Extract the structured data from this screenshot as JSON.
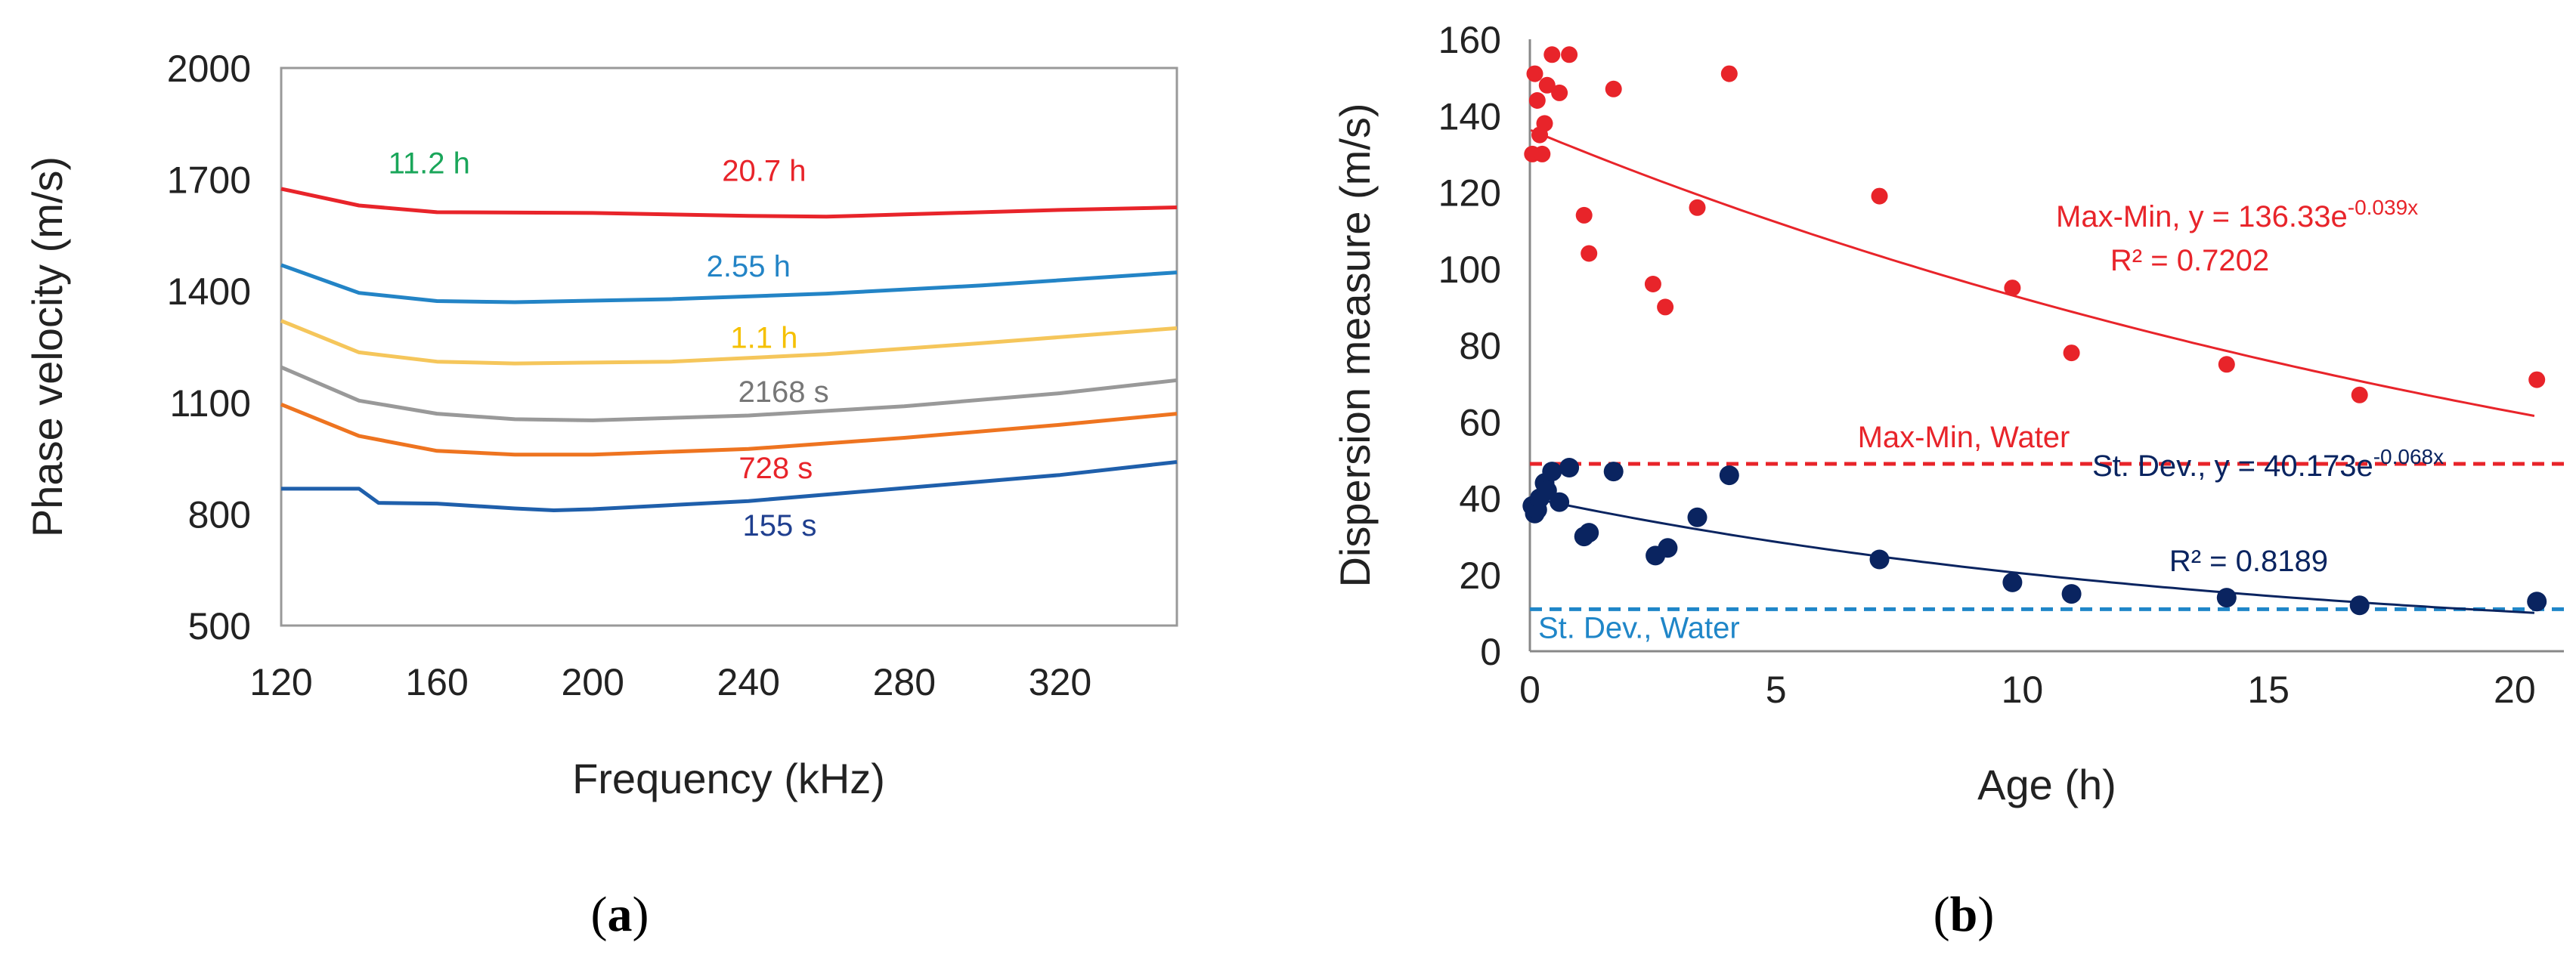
{
  "panel_labels": {
    "a": "(a)",
    "a_letter": "a",
    "b": "(b)",
    "b_letter": "b"
  },
  "chart_data": [
    {
      "type": "line",
      "xlabel": "Frequency (kHz)",
      "ylabel": "Phase velocity (m/s)",
      "xlim": [
        120,
        350
      ],
      "ylim": [
        500,
        2000
      ],
      "xticks": [
        120,
        160,
        200,
        240,
        280,
        320
      ],
      "yticks": [
        500,
        800,
        1100,
        1400,
        1700,
        2000
      ],
      "grid": false,
      "series": [
        {
          "name": "20.7 h",
          "color": "#e8242a",
          "x": [
            120,
            140,
            160,
            200,
            240,
            260,
            280,
            320,
            350
          ],
          "y": [
            1675,
            1630,
            1612,
            1610,
            1602,
            1600,
            1606,
            1618,
            1625
          ]
        },
        {
          "name": "2.55 h",
          "color": "#2384c6",
          "x": [
            120,
            140,
            160,
            180,
            220,
            260,
            300,
            350
          ],
          "y": [
            1470,
            1395,
            1373,
            1370,
            1378,
            1393,
            1415,
            1450
          ]
        },
        {
          "name": "1.1 h",
          "color": "#f5c65b",
          "x": [
            120,
            140,
            160,
            180,
            220,
            260,
            300,
            350
          ],
          "y": [
            1320,
            1235,
            1210,
            1205,
            1210,
            1230,
            1260,
            1300
          ]
        },
        {
          "name": "2168 s",
          "color": "#999999",
          "x": [
            120,
            140,
            160,
            180,
            200,
            240,
            280,
            320,
            350
          ],
          "y": [
            1195,
            1105,
            1070,
            1055,
            1052,
            1065,
            1090,
            1125,
            1160
          ]
        },
        {
          "name": "728 s",
          "color": "#ee7420",
          "x": [
            120,
            140,
            160,
            180,
            200,
            240,
            280,
            320,
            350
          ],
          "y": [
            1095,
            1010,
            970,
            960,
            960,
            975,
            1005,
            1040,
            1070
          ]
        },
        {
          "name": "155 s",
          "color": "#1f5fab",
          "x": [
            120,
            140,
            145,
            160,
            180,
            190,
            200,
            240,
            280,
            320,
            350
          ],
          "y": [
            868,
            868,
            830,
            828,
            815,
            810,
            813,
            835,
            870,
            905,
            940
          ]
        }
      ],
      "annotations": [
        {
          "text": "11.2 h",
          "color": "#1aa65a",
          "x": 158,
          "y": 1745
        },
        {
          "text": "20.7 h",
          "color": "#e8242a",
          "x": 244,
          "y": 1725
        },
        {
          "text": "2.55 h",
          "color": "#2384c6",
          "x": 240,
          "y": 1467
        },
        {
          "text": "1.1 h",
          "color": "#f5c000",
          "x": 244,
          "y": 1275
        },
        {
          "text": "2168 s",
          "color": "#777777",
          "x": 249,
          "y": 1130
        },
        {
          "text": "728 s",
          "color": "#e8242a",
          "x": 247,
          "y": 925
        },
        {
          "text": "155 s",
          "color": "#1f3f8f",
          "x": 248,
          "y": 770
        }
      ]
    },
    {
      "type": "scatter",
      "xlabel": "Age (h)",
      "ylabel": "Dispersion measure (m/s)",
      "xlim": [
        0,
        21
      ],
      "ylim": [
        0,
        160
      ],
      "xticks": [
        0,
        5,
        10,
        15,
        20
      ],
      "yticks": [
        0,
        20,
        40,
        60,
        80,
        100,
        120,
        140,
        160
      ],
      "grid": false,
      "series": [
        {
          "name": "Max-Min",
          "color": "#e8242a",
          "x": [
            0.05,
            0.1,
            0.15,
            0.2,
            0.25,
            0.3,
            0.35,
            0.45,
            0.6,
            0.8,
            1.1,
            1.2,
            1.7,
            2.5,
            2.75,
            3.4,
            4.05,
            7.1,
            9.8,
            11.0,
            14.15,
            16.85,
            20.45
          ],
          "y": [
            130,
            151,
            144,
            135,
            130,
            138,
            148,
            156,
            146,
            156,
            114,
            104,
            147,
            96,
            90,
            116,
            151,
            119,
            95,
            78,
            75,
            67,
            71
          ]
        },
        {
          "name": "St. Dev.",
          "color": "#0a2460",
          "x": [
            0.05,
            0.1,
            0.15,
            0.2,
            0.3,
            0.35,
            0.45,
            0.6,
            0.8,
            1.1,
            1.2,
            1.7,
            2.55,
            2.8,
            3.4,
            4.05,
            7.1,
            9.8,
            11.0,
            14.15,
            16.85,
            20.45
          ],
          "y": [
            38,
            36,
            37,
            40,
            44,
            42,
            47,
            39,
            48,
            30,
            31,
            47,
            25,
            27,
            35,
            46,
            24,
            18,
            15,
            14,
            12,
            13
          ]
        }
      ],
      "trendlines": [
        {
          "name": "Max-Min",
          "color": "#e8242a",
          "a": 136.33,
          "b": -0.039,
          "equation_label": "Max-Min, y = 136.33e",
          "equation_exponent": "-0.039x",
          "r2_label": "R² = 0.7202"
        },
        {
          "name": "St. Dev.",
          "color": "#0a2460",
          "a": 40.173,
          "b": -0.068,
          "equation_label": "St. Dev., y = 40.173e",
          "equation_exponent": "-0.068x",
          "r2_label": "R² = 0.8189"
        }
      ],
      "reference_lines": [
        {
          "label": "Max-Min, Water",
          "color": "#e8242a",
          "y": 49
        },
        {
          "label": "St. Dev., Water",
          "color": "#1f86c8",
          "y": 11
        }
      ]
    }
  ]
}
